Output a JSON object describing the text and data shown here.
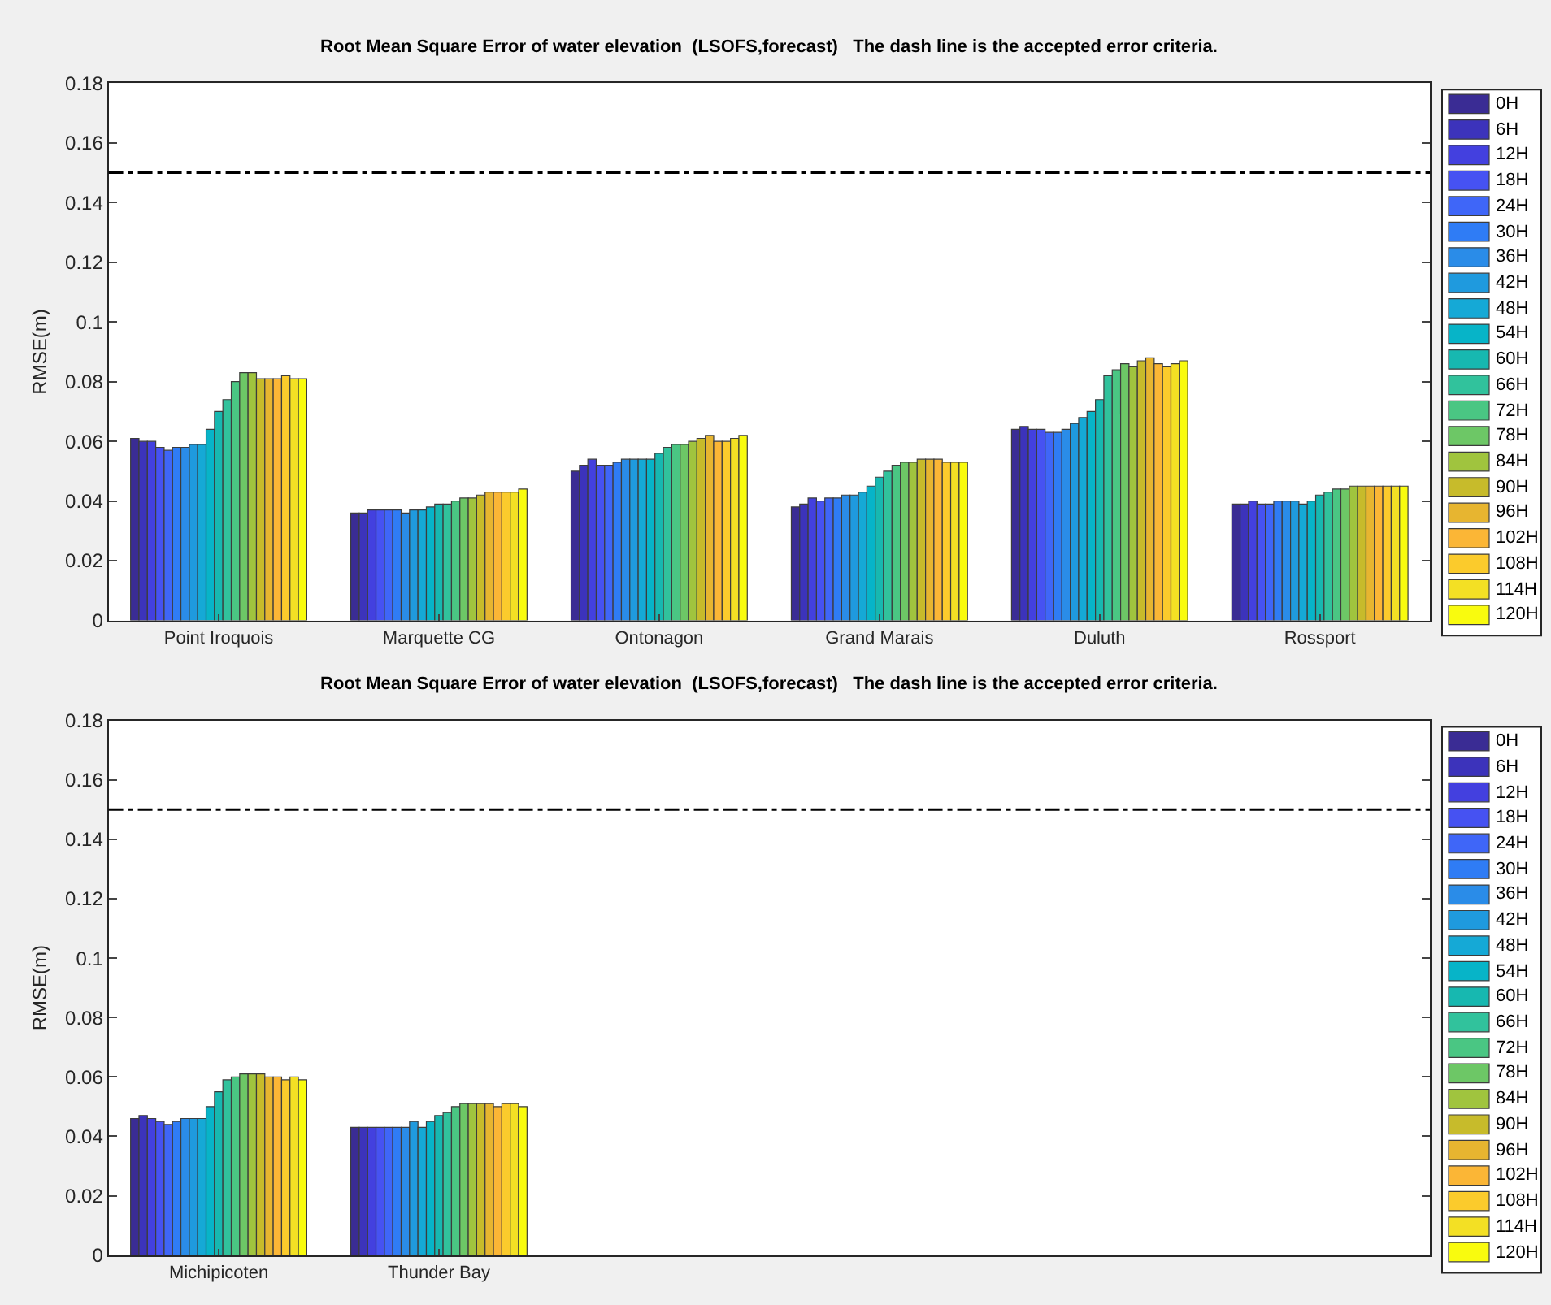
{
  "chart_data": [
    {
      "type": "bar",
      "title": "Root Mean Square Error of water elevation  (LSOFS,forecast)   The dash line is the accepted error criteria.",
      "ylabel": "RMSE(m)",
      "categories": [
        "Point Iroquois",
        "Marquette CG",
        "Ontonagon",
        "Grand Marais",
        "Duluth",
        "Rossport"
      ],
      "ylim": [
        0,
        0.18
      ],
      "yticks": [
        0,
        0.02,
        0.04,
        0.06,
        0.08,
        0.1,
        0.12,
        0.14,
        0.16,
        0.18
      ],
      "legend": "right",
      "ref_lines": [
        {
          "axis": "y",
          "value": 0.15,
          "color": "#000000",
          "line_style": "dashed"
        }
      ],
      "series": [
        {
          "name": "0H",
          "color": "#3a2c94",
          "values": [
            0.061,
            0.036,
            0.05,
            0.038,
            0.064,
            0.039
          ]
        },
        {
          "name": "6H",
          "color": "#3c33bb",
          "values": [
            0.06,
            0.036,
            0.052,
            0.039,
            0.065,
            0.039
          ]
        },
        {
          "name": "12H",
          "color": "#4340df",
          "values": [
            0.06,
            0.037,
            0.054,
            0.041,
            0.064,
            0.04
          ]
        },
        {
          "name": "18H",
          "color": "#4652f2",
          "values": [
            0.058,
            0.037,
            0.052,
            0.04,
            0.064,
            0.039
          ]
        },
        {
          "name": "24H",
          "color": "#3f66f8",
          "values": [
            0.057,
            0.037,
            0.052,
            0.041,
            0.063,
            0.039
          ]
        },
        {
          "name": "30H",
          "color": "#2f7cf5",
          "values": [
            0.058,
            0.037,
            0.053,
            0.041,
            0.063,
            0.04
          ]
        },
        {
          "name": "36H",
          "color": "#2a8ce8",
          "values": [
            0.058,
            0.036,
            0.054,
            0.042,
            0.064,
            0.04
          ]
        },
        {
          "name": "42H",
          "color": "#1f9ade",
          "values": [
            0.059,
            0.037,
            0.054,
            0.042,
            0.066,
            0.04
          ]
        },
        {
          "name": "48H",
          "color": "#15a9d6",
          "values": [
            0.059,
            0.037,
            0.054,
            0.043,
            0.068,
            0.039
          ]
        },
        {
          "name": "54H",
          "color": "#07b4c8",
          "values": [
            0.064,
            0.038,
            0.054,
            0.045,
            0.07,
            0.04
          ]
        },
        {
          "name": "60H",
          "color": "#17b8b0",
          "values": [
            0.07,
            0.039,
            0.056,
            0.048,
            0.074,
            0.042
          ]
        },
        {
          "name": "66H",
          "color": "#31c29c",
          "values": [
            0.074,
            0.039,
            0.058,
            0.05,
            0.082,
            0.043
          ]
        },
        {
          "name": "72H",
          "color": "#4ac683",
          "values": [
            0.08,
            0.04,
            0.059,
            0.052,
            0.084,
            0.044
          ]
        },
        {
          "name": "78H",
          "color": "#6dc766",
          "values": [
            0.083,
            0.041,
            0.059,
            0.053,
            0.086,
            0.044
          ]
        },
        {
          "name": "84H",
          "color": "#a0c43e",
          "values": [
            0.083,
            0.041,
            0.06,
            0.053,
            0.085,
            0.045
          ]
        },
        {
          "name": "90H",
          "color": "#c7bb2b",
          "values": [
            0.081,
            0.042,
            0.061,
            0.054,
            0.087,
            0.045
          ]
        },
        {
          "name": "96H",
          "color": "#e7b530",
          "values": [
            0.081,
            0.043,
            0.062,
            0.054,
            0.088,
            0.045
          ]
        },
        {
          "name": "102H",
          "color": "#fbb636",
          "values": [
            0.081,
            0.043,
            0.06,
            0.054,
            0.086,
            0.045
          ]
        },
        {
          "name": "108H",
          "color": "#fbcb2c",
          "values": [
            0.082,
            0.043,
            0.06,
            0.053,
            0.085,
            0.045
          ]
        },
        {
          "name": "114H",
          "color": "#f3e024",
          "values": [
            0.081,
            0.043,
            0.061,
            0.053,
            0.086,
            0.045
          ]
        },
        {
          "name": "120H",
          "color": "#f9fb0e",
          "values": [
            0.081,
            0.044,
            0.062,
            0.053,
            0.087,
            0.045
          ]
        }
      ]
    },
    {
      "type": "bar",
      "title": "Root Mean Square Error of water elevation  (LSOFS,forecast)   The dash line is the accepted error criteria.",
      "ylabel": "RMSE(m)",
      "categories": [
        "Michipicoten",
        "Thunder Bay",
        null,
        null,
        null,
        null
      ],
      "ylim": [
        0,
        0.18
      ],
      "yticks": [
        0,
        0.02,
        0.04,
        0.06,
        0.08,
        0.1,
        0.12,
        0.14,
        0.16,
        0.18
      ],
      "legend": "right",
      "ref_lines": [
        {
          "axis": "y",
          "value": 0.15,
          "color": "#000000",
          "line_style": "dashed"
        }
      ],
      "series": [
        {
          "name": "0H",
          "color": "#3a2c94",
          "values": [
            0.046,
            0.043,
            null,
            null,
            null,
            null
          ]
        },
        {
          "name": "6H",
          "color": "#3c33bb",
          "values": [
            0.047,
            0.043,
            null,
            null,
            null,
            null
          ]
        },
        {
          "name": "12H",
          "color": "#4340df",
          "values": [
            0.046,
            0.043,
            null,
            null,
            null,
            null
          ]
        },
        {
          "name": "18H",
          "color": "#4652f2",
          "values": [
            0.045,
            0.043,
            null,
            null,
            null,
            null
          ]
        },
        {
          "name": "24H",
          "color": "#3f66f8",
          "values": [
            0.044,
            0.043,
            null,
            null,
            null,
            null
          ]
        },
        {
          "name": "30H",
          "color": "#2f7cf5",
          "values": [
            0.045,
            0.043,
            null,
            null,
            null,
            null
          ]
        },
        {
          "name": "36H",
          "color": "#2a8ce8",
          "values": [
            0.046,
            0.043,
            null,
            null,
            null,
            null
          ]
        },
        {
          "name": "42H",
          "color": "#1f9ade",
          "values": [
            0.046,
            0.045,
            null,
            null,
            null,
            null
          ]
        },
        {
          "name": "48H",
          "color": "#15a9d6",
          "values": [
            0.046,
            0.043,
            null,
            null,
            null,
            null
          ]
        },
        {
          "name": "54H",
          "color": "#07b4c8",
          "values": [
            0.05,
            0.045,
            null,
            null,
            null,
            null
          ]
        },
        {
          "name": "60H",
          "color": "#17b8b0",
          "values": [
            0.055,
            0.047,
            null,
            null,
            null,
            null
          ]
        },
        {
          "name": "66H",
          "color": "#31c29c",
          "values": [
            0.059,
            0.048,
            null,
            null,
            null,
            null
          ]
        },
        {
          "name": "72H",
          "color": "#4ac683",
          "values": [
            0.06,
            0.05,
            null,
            null,
            null,
            null
          ]
        },
        {
          "name": "78H",
          "color": "#6dc766",
          "values": [
            0.061,
            0.051,
            null,
            null,
            null,
            null
          ]
        },
        {
          "name": "84H",
          "color": "#a0c43e",
          "values": [
            0.061,
            0.051,
            null,
            null,
            null,
            null
          ]
        },
        {
          "name": "90H",
          "color": "#c7bb2b",
          "values": [
            0.061,
            0.051,
            null,
            null,
            null,
            null
          ]
        },
        {
          "name": "96H",
          "color": "#e7b530",
          "values": [
            0.06,
            0.051,
            null,
            null,
            null,
            null
          ]
        },
        {
          "name": "102H",
          "color": "#fbb636",
          "values": [
            0.06,
            0.05,
            null,
            null,
            null,
            null
          ]
        },
        {
          "name": "108H",
          "color": "#fbcb2c",
          "values": [
            0.059,
            0.051,
            null,
            null,
            null,
            null
          ]
        },
        {
          "name": "114H",
          "color": "#f3e024",
          "values": [
            0.06,
            0.051,
            null,
            null,
            null,
            null
          ]
        },
        {
          "name": "120H",
          "color": "#f9fb0e",
          "values": [
            0.059,
            0.05,
            null,
            null,
            null,
            null
          ]
        }
      ]
    }
  ]
}
